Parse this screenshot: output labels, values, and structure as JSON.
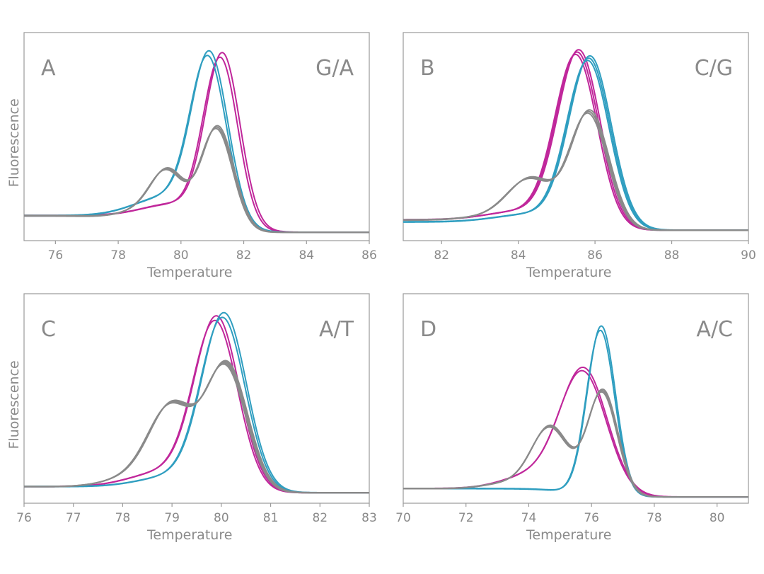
{
  "colors": {
    "magenta": "#c0279b",
    "blue": "#2f9ec0",
    "gray": "#8a8a8a"
  },
  "chart_data": [
    {
      "type": "line",
      "id": "A",
      "letter": "A",
      "genotype": "G/A",
      "xlabel": "Temperature",
      "ylabel": "Fluorescence",
      "xlim": [
        75,
        86
      ],
      "ylim": [
        0,
        1
      ],
      "ticks": [
        76,
        78,
        80,
        82,
        84,
        86
      ],
      "tick_labels": [
        "76",
        "78",
        "80",
        "82",
        "84",
        "86"
      ],
      "series": [
        {
          "name": "magenta",
          "color": "#c0279b",
          "replicates": 2,
          "spread": 0.07,
          "baseline": 0.12,
          "tail": 0.04,
          "peaks": [
            {
              "mu": 81.3,
              "sigma": 0.55,
              "amp": 0.8
            },
            {
              "mu": 80.1,
              "sigma": 1.1,
              "amp": 0.08
            }
          ]
        },
        {
          "name": "blue",
          "color": "#2f9ec0",
          "replicates": 2,
          "spread": 0.05,
          "baseline": 0.12,
          "tail": 0.04,
          "peaks": [
            {
              "mu": 80.9,
              "sigma": 0.58,
              "amp": 0.78
            },
            {
              "mu": 79.8,
              "sigma": 1.1,
              "amp": 0.12
            }
          ]
        },
        {
          "name": "gray",
          "color": "#8a8a8a",
          "replicates": 3,
          "spread": 0.05,
          "baseline": 0.12,
          "tail": 0.04,
          "peaks": [
            {
              "mu": 79.6,
              "sigma": 0.55,
              "amp": 0.26
            },
            {
              "mu": 81.15,
              "sigma": 0.52,
              "amp": 0.5
            },
            {
              "mu": 78.8,
              "sigma": 0.7,
              "amp": 0.06
            }
          ]
        }
      ]
    },
    {
      "type": "line",
      "id": "B",
      "letter": "B",
      "genotype": "C/G",
      "xlabel": "Temperature",
      "ylabel": "",
      "xlim": [
        81,
        90
      ],
      "ylim": [
        0,
        1
      ],
      "ticks": [
        82,
        84,
        86,
        88,
        90
      ],
      "tick_labels": [
        "82",
        "84",
        "86",
        "88",
        "90"
      ],
      "series": [
        {
          "name": "magenta",
          "color": "#c0279b",
          "replicates": 3,
          "spread": 0.08,
          "baseline": 0.1,
          "tail": 0.05,
          "peaks": [
            {
              "mu": 85.55,
              "sigma": 0.55,
              "amp": 0.82
            },
            {
              "mu": 84.4,
              "sigma": 1.0,
              "amp": 0.06
            }
          ]
        },
        {
          "name": "blue",
          "color": "#2f9ec0",
          "replicates": 3,
          "spread": 0.06,
          "baseline": 0.09,
          "tail": 0.05,
          "peaks": [
            {
              "mu": 85.85,
              "sigma": 0.55,
              "amp": 0.8
            },
            {
              "mu": 84.6,
              "sigma": 1.0,
              "amp": 0.05
            }
          ]
        },
        {
          "name": "gray",
          "color": "#8a8a8a",
          "replicates": 3,
          "spread": 0.05,
          "baseline": 0.1,
          "tail": 0.05,
          "peaks": [
            {
              "mu": 84.35,
              "sigma": 0.6,
              "amp": 0.22
            },
            {
              "mu": 85.85,
              "sigma": 0.5,
              "amp": 0.56
            },
            {
              "mu": 83.5,
              "sigma": 0.8,
              "amp": 0.04
            }
          ]
        }
      ]
    },
    {
      "type": "line",
      "id": "C",
      "letter": "C",
      "genotype": "A/T",
      "xlabel": "Temperature",
      "ylabel": "Fluorescence",
      "xlim": [
        76,
        83
      ],
      "ylim": [
        0,
        1
      ],
      "ticks": [
        76,
        77,
        78,
        79,
        80,
        81,
        82,
        83
      ],
      "tick_labels": [
        "76",
        "77",
        "78",
        "79",
        "80",
        "81",
        "82",
        "83"
      ],
      "series": [
        {
          "name": "magenta",
          "color": "#c0279b",
          "replicates": 2,
          "spread": 0.03,
          "baseline": 0.08,
          "tail": 0.05,
          "peaks": [
            {
              "mu": 79.9,
              "sigma": 0.45,
              "amp": 0.8
            },
            {
              "mu": 78.9,
              "sigma": 0.7,
              "amp": 0.08
            }
          ]
        },
        {
          "name": "blue",
          "color": "#2f9ec0",
          "replicates": 2,
          "spread": 0.03,
          "baseline": 0.08,
          "tail": 0.05,
          "peaks": [
            {
              "mu": 80.05,
              "sigma": 0.45,
              "amp": 0.82
            },
            {
              "mu": 79.1,
              "sigma": 0.7,
              "amp": 0.06
            }
          ]
        },
        {
          "name": "gray",
          "color": "#8a8a8a",
          "replicates": 4,
          "spread": 0.04,
          "baseline": 0.08,
          "tail": 0.05,
          "peaks": [
            {
              "mu": 79.0,
              "sigma": 0.45,
              "amp": 0.38
            },
            {
              "mu": 80.1,
              "sigma": 0.42,
              "amp": 0.6
            },
            {
              "mu": 78.3,
              "sigma": 0.6,
              "amp": 0.06
            }
          ]
        }
      ]
    },
    {
      "type": "line",
      "id": "D",
      "letter": "D",
      "genotype": "A/C",
      "xlabel": "Temperature",
      "ylabel": "",
      "xlim": [
        70,
        81
      ],
      "ylim": [
        0,
        1
      ],
      "ticks": [
        70,
        72,
        74,
        76,
        78,
        80
      ],
      "tick_labels": [
        "70",
        "72",
        "74",
        "76",
        "78",
        "80"
      ],
      "series": [
        {
          "name": "magenta",
          "color": "#c0279b",
          "replicates": 2,
          "spread": 0.03,
          "baseline": 0.07,
          "tail": 0.03,
          "peaks": [
            {
              "mu": 75.75,
              "sigma": 0.75,
              "amp": 0.58
            },
            {
              "mu": 74.3,
              "sigma": 1.0,
              "amp": 0.08
            }
          ]
        },
        {
          "name": "blue",
          "color": "#2f9ec0",
          "replicates": 2,
          "spread": 0.03,
          "baseline": 0.07,
          "tail": 0.03,
          "peaks": [
            {
              "mu": 76.3,
              "sigma": 0.45,
              "amp": 0.8
            }
          ]
        },
        {
          "name": "gray",
          "color": "#8a8a8a",
          "replicates": 3,
          "spread": 0.03,
          "baseline": 0.07,
          "tail": 0.03,
          "peaks": [
            {
              "mu": 74.7,
              "sigma": 0.6,
              "amp": 0.32
            },
            {
              "mu": 76.35,
              "sigma": 0.48,
              "amp": 0.5
            },
            {
              "mu": 73.5,
              "sigma": 0.8,
              "amp": 0.04
            }
          ]
        }
      ]
    }
  ]
}
